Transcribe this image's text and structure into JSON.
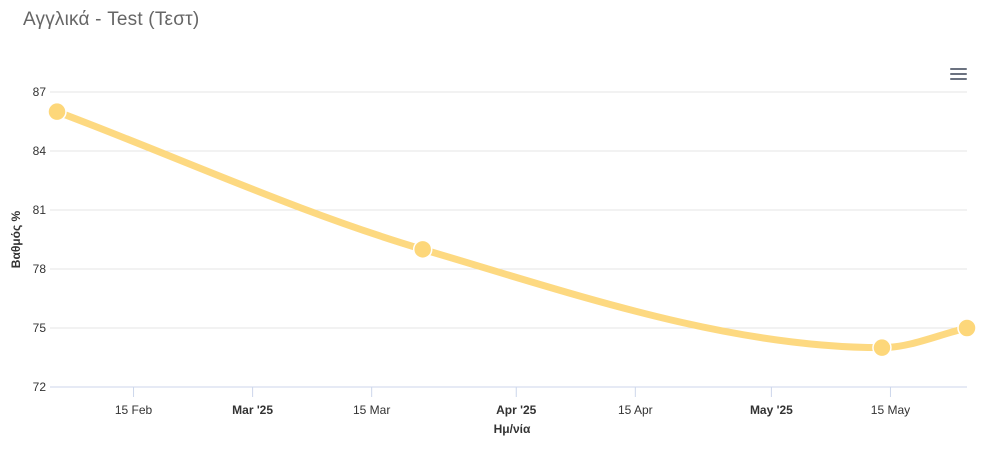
{
  "header": {
    "title": "Αγγλικά - Test (Τεστ)",
    "menu_icon": "hamburger-menu-icon"
  },
  "chart_data": {
    "type": "line",
    "title": "Αγγλικά - Test (Τεστ)",
    "xlabel": "Ημ/νία",
    "ylabel": "Βαθμός %",
    "ylim": [
      72,
      87
    ],
    "yticks": [
      72,
      75,
      78,
      81,
      84,
      87
    ],
    "xlim": [
      "2025-02-06",
      "2025-05-24"
    ],
    "xticks": [
      {
        "label": "15 Feb",
        "date": "2025-02-15",
        "major": false
      },
      {
        "label": "Mar '25",
        "date": "2025-03-01",
        "major": true
      },
      {
        "label": "15 Mar",
        "date": "2025-03-15",
        "major": false
      },
      {
        "label": "Apr '25",
        "date": "2025-04-01",
        "major": true
      },
      {
        "label": "15 Apr",
        "date": "2025-04-15",
        "major": false
      },
      {
        "label": "May '25",
        "date": "2025-05-01",
        "major": true
      },
      {
        "label": "15 May",
        "date": "2025-05-15",
        "major": false
      }
    ],
    "grid": true,
    "legend": "none",
    "series": [
      {
        "color": "#FDD77A",
        "points": [
          {
            "x": "2025-02-06",
            "y": 86
          },
          {
            "x": "2025-03-21",
            "y": 79
          },
          {
            "x": "2025-05-14",
            "y": 74
          },
          {
            "x": "2025-05-24",
            "y": 75
          }
        ]
      }
    ]
  }
}
